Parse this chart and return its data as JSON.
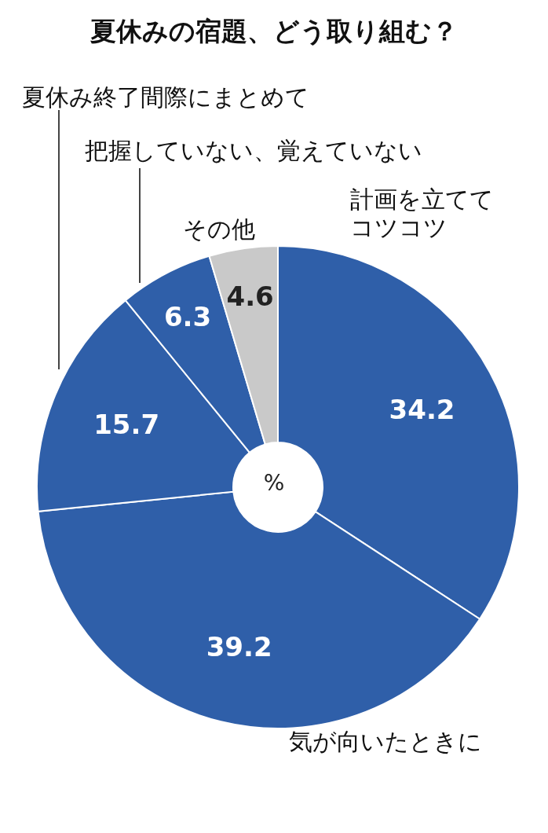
{
  "chart_data": {
    "type": "donut",
    "title": "夏休みの宿題、どう取り組む？",
    "categories": [
      "計画を立ててコツコツ",
      "気が向いたときに",
      "夏休み終了間際にまとめて",
      "把握していない、覚えていない",
      "その他"
    ],
    "values": [
      34.2,
      39.2,
      15.7,
      6.3,
      4.6
    ],
    "colors": [
      "#2f5fa9",
      "#2f5fa9",
      "#2f5fa9",
      "#2f5fa9",
      "#c9c9c9"
    ],
    "data_labels": true,
    "annotations": [
      "%"
    ]
  }
}
